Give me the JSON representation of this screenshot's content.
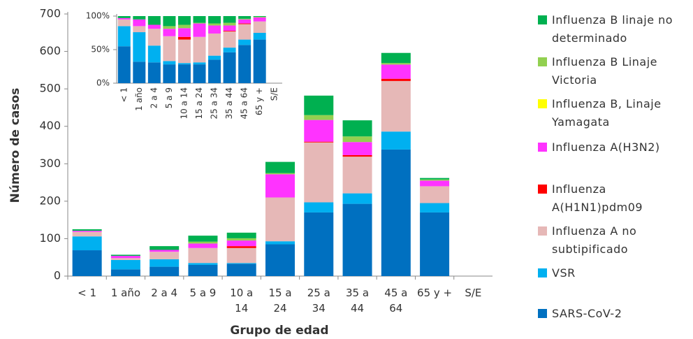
{
  "chart_data": [
    {
      "type": "stacked-bar",
      "ylabel": "Número de casos",
      "xlabel": "Grupo de edad",
      "categories": [
        "< 1",
        "1 año",
        "2 a 4",
        "5 a 9",
        "10 a 14",
        "15 a 24",
        "25 a 34",
        "35 a 44",
        "45 a 64",
        "65 y +",
        "S/E"
      ],
      "ylim": [
        0,
        700
      ],
      "yticks": [
        0,
        100,
        200,
        300,
        400,
        500,
        600,
        700
      ],
      "legend": "right",
      "series": [
        {
          "name": "SARS-CoV-2",
          "color": "#0070c0",
          "values": [
            69,
            18,
            25,
            30,
            33,
            85,
            170,
            193,
            338,
            170,
            0
          ]
        },
        {
          "name": "VSR",
          "color": "#00b0f0",
          "values": [
            37,
            25,
            20,
            5,
            2,
            8,
            27,
            28,
            48,
            25,
            0
          ]
        },
        {
          "name": "Influenza A no subtipificado",
          "color": "#e6b8b7",
          "values": [
            12,
            5,
            20,
            40,
            40,
            117,
            160,
            98,
            135,
            45,
            0
          ]
        },
        {
          "name": "Influenza A(H1N1)pdm09",
          "color": "#ff0000",
          "values": [
            0,
            0,
            0,
            0,
            5,
            0,
            2,
            4,
            6,
            0,
            0
          ]
        },
        {
          "name": "Influenza A(H3N2)",
          "color": "#ff33ff",
          "values": [
            3,
            6,
            5,
            12,
            15,
            62,
            58,
            35,
            38,
            15,
            0
          ]
        },
        {
          "name": "Influenza B, Linaje Yamagata",
          "color": "#ffff00",
          "values": [
            0,
            0,
            0,
            0,
            0,
            0,
            0,
            0,
            0,
            0,
            0
          ]
        },
        {
          "name": "Influenza B Linaje Victoria",
          "color": "#92d050",
          "values": [
            0,
            0,
            0,
            5,
            6,
            3,
            13,
            15,
            4,
            3,
            0
          ]
        },
        {
          "name": "Influenza B linaje no determinado",
          "color": "#00b050",
          "values": [
            4,
            3,
            10,
            16,
            15,
            30,
            52,
            43,
            27,
            4,
            0
          ]
        }
      ]
    },
    {
      "type": "stacked-bar",
      "categories": [
        "< 1",
        "1 año",
        "2 a 4",
        "5 a 9",
        "10 a 14",
        "15 a 24",
        "25 a 34",
        "35 a 44",
        "45 a 64",
        "65 y +",
        "S/E"
      ],
      "ylim": [
        0,
        100
      ],
      "yticks": [
        {
          "value": 0,
          "label": "0%"
        },
        {
          "value": 50,
          "label": "50%"
        },
        {
          "value": 100,
          "label": "100%"
        }
      ],
      "series": [
        {
          "color": "#0070c0",
          "values": [
            55,
            32,
            31,
            28,
            28,
            28,
            35,
            46,
            57,
            65,
            0
          ]
        },
        {
          "color": "#00b0f0",
          "values": [
            30,
            44,
            25,
            5,
            2,
            3,
            6,
            7,
            8,
            10,
            0
          ]
        },
        {
          "color": "#e6b8b7",
          "values": [
            10,
            9,
            25,
            37,
            35,
            38,
            33,
            24,
            23,
            17,
            0
          ]
        },
        {
          "color": "#ff0000",
          "values": [
            0,
            0,
            0,
            0,
            4,
            0,
            0,
            1,
            1,
            0,
            0
          ]
        },
        {
          "color": "#ff33ff",
          "values": [
            2,
            10,
            6,
            11,
            13,
            20,
            12,
            8,
            6,
            6,
            0
          ]
        },
        {
          "color": "#ffff00",
          "values": [
            0,
            0,
            0,
            0,
            0,
            0,
            0,
            0,
            0,
            0,
            0
          ]
        },
        {
          "color": "#92d050",
          "values": [
            0,
            0,
            0,
            4,
            5,
            1,
            3,
            4,
            1,
            1,
            0
          ]
        },
        {
          "color": "#00b050",
          "values": [
            3,
            5,
            13,
            15,
            13,
            10,
            11,
            10,
            4,
            1,
            0
          ]
        }
      ]
    }
  ]
}
